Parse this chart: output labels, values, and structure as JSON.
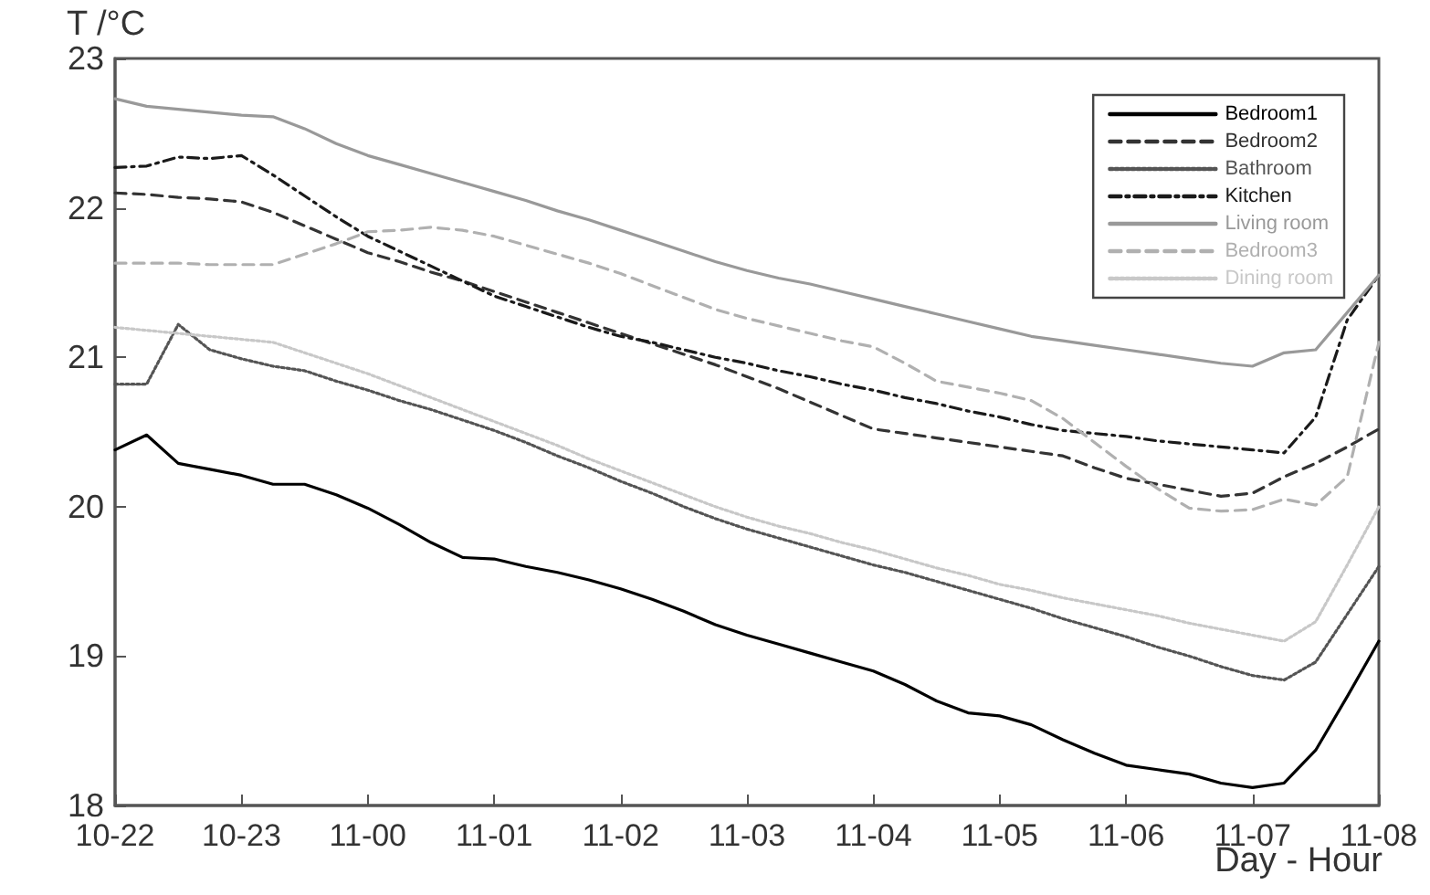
{
  "chart_data": {
    "type": "line",
    "xlabel": "Day - Hour",
    "ylabel": "T /°C",
    "categories": [
      "10-22",
      null,
      null,
      null,
      "10-23",
      null,
      null,
      null,
      "11-00",
      null,
      null,
      null,
      "11-01",
      null,
      null,
      null,
      "11-02",
      null,
      null,
      null,
      "11-03",
      null,
      null,
      null,
      "11-04",
      null,
      null,
      null,
      "11-05",
      null,
      null,
      null,
      "11-06",
      null,
      null,
      null,
      "11-07",
      null,
      null,
      null,
      "11-08"
    ],
    "ylim": [
      18,
      23
    ],
    "yticks": [
      18,
      19,
      20,
      21,
      22,
      23
    ],
    "legend": "top right",
    "series": [
      {
        "name": "Bedroom1",
        "color": "#000000",
        "line_style": "solid",
        "values": [
          20.38,
          20.48,
          20.29,
          20.25,
          20.21,
          20.15,
          20.15,
          20.08,
          19.99,
          19.88,
          19.76,
          19.66,
          19.65,
          19.6,
          19.56,
          19.51,
          19.45,
          19.38,
          19.3,
          19.21,
          19.14,
          19.08,
          19.02,
          18.96,
          18.9,
          18.81,
          18.7,
          18.62,
          18.6,
          18.54,
          18.44,
          18.35,
          18.27,
          18.24,
          18.21,
          18.15,
          18.12,
          18.15,
          18.37,
          18.73,
          19.1
        ]
      },
      {
        "name": "Bedroom2",
        "color": "#333333",
        "line_style": "dashed",
        "values": [
          22.1,
          22.09,
          22.07,
          22.06,
          22.04,
          21.97,
          21.88,
          21.79,
          21.7,
          21.64,
          21.57,
          21.51,
          21.44,
          21.37,
          21.3,
          21.23,
          21.16,
          21.09,
          21.02,
          20.95,
          20.87,
          20.79,
          20.7,
          20.61,
          20.52,
          20.49,
          20.46,
          20.43,
          20.4,
          20.37,
          20.34,
          20.26,
          20.19,
          20.15,
          20.11,
          20.07,
          20.09,
          20.2,
          20.29,
          20.4,
          20.52
        ]
      },
      {
        "name": "Bathroom",
        "color": "#555555",
        "line_style": "dotted",
        "values": [
          20.82,
          20.82,
          21.22,
          21.05,
          20.99,
          20.94,
          20.91,
          20.84,
          20.78,
          20.71,
          20.65,
          20.58,
          20.51,
          20.43,
          20.34,
          20.26,
          20.17,
          20.09,
          20.0,
          19.92,
          19.85,
          19.79,
          19.73,
          19.67,
          19.61,
          19.56,
          19.5,
          19.44,
          19.38,
          19.32,
          19.25,
          19.19,
          19.13,
          19.06,
          19.0,
          18.93,
          18.87,
          18.84,
          18.96,
          19.28,
          19.6
        ]
      },
      {
        "name": "Kitchen",
        "color": "#1a1a1a",
        "line_style": "dashdot",
        "values": [
          22.27,
          22.28,
          22.34,
          22.33,
          22.35,
          22.22,
          22.08,
          21.94,
          21.81,
          21.71,
          21.61,
          21.51,
          21.41,
          21.34,
          21.27,
          21.2,
          21.14,
          21.1,
          21.05,
          21.0,
          20.96,
          20.91,
          20.87,
          20.82,
          20.78,
          20.73,
          20.69,
          20.64,
          20.6,
          20.55,
          20.51,
          20.49,
          20.47,
          20.44,
          20.42,
          20.4,
          20.38,
          20.36,
          20.6,
          21.25,
          21.55
        ]
      },
      {
        "name": "Living room",
        "color": "#999999",
        "line_style": "solid",
        "values": [
          22.73,
          22.68,
          22.66,
          22.64,
          22.62,
          22.61,
          22.53,
          22.43,
          22.35,
          22.29,
          22.23,
          22.17,
          22.11,
          22.05,
          21.98,
          21.92,
          21.85,
          21.78,
          21.71,
          21.64,
          21.58,
          21.53,
          21.49,
          21.44,
          21.39,
          21.34,
          21.29,
          21.24,
          21.19,
          21.14,
          21.11,
          21.08,
          21.05,
          21.02,
          20.99,
          20.96,
          20.94,
          21.03,
          21.05,
          21.3,
          21.55
        ]
      },
      {
        "name": "Bedroom3",
        "color": "#b0b0b0",
        "line_style": "dashed",
        "values": [
          21.63,
          21.63,
          21.63,
          21.62,
          21.62,
          21.62,
          21.69,
          21.76,
          21.84,
          21.85,
          21.87,
          21.85,
          21.81,
          21.75,
          21.69,
          21.63,
          21.56,
          21.48,
          21.4,
          21.32,
          21.26,
          21.21,
          21.16,
          21.11,
          21.07,
          20.96,
          20.84,
          20.8,
          20.76,
          20.71,
          20.59,
          20.43,
          20.27,
          20.12,
          19.99,
          19.97,
          19.98,
          20.05,
          20.01,
          20.2,
          21.1
        ]
      },
      {
        "name": "Dining room",
        "color": "#c8c8c8",
        "line_style": "dotted",
        "values": [
          21.2,
          21.18,
          21.16,
          21.14,
          21.12,
          21.1,
          21.03,
          20.96,
          20.89,
          20.81,
          20.73,
          20.65,
          20.57,
          20.49,
          20.41,
          20.32,
          20.24,
          20.16,
          20.08,
          20.0,
          19.93,
          19.87,
          19.82,
          19.76,
          19.71,
          19.65,
          19.59,
          19.54,
          19.48,
          19.44,
          19.39,
          19.35,
          19.31,
          19.27,
          19.22,
          19.18,
          19.14,
          19.1,
          19.23,
          19.61,
          20.0
        ]
      }
    ]
  }
}
